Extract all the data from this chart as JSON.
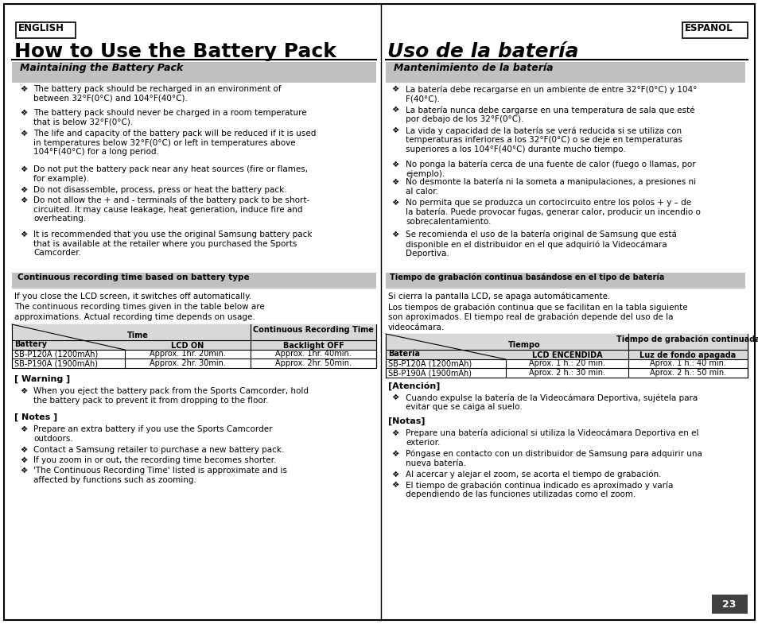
{
  "page_num": "23",
  "english_label": "ENGLISH",
  "espanol_label": "ESPAÑOL",
  "left_title": "How to Use the Battery Pack",
  "right_title": "Uso de la batería",
  "left_section": "Maintaining the Battery Pack",
  "right_section": "Mantenimiento de la batería",
  "left_subheader": "Continuous recording time based on battery type",
  "right_subheader": "Tiempo de grabación continua basándose en el tipo de batería",
  "left_sub_text1": "If you close the LCD screen, it switches off automatically.",
  "left_sub_text2": "The continuous recording times given in the table below are",
  "left_sub_text3": "approximations. Actual recording time depends on usage.",
  "right_sub_text1": "Si cierra la pantalla LCD, se apaga automáticamente.",
  "right_sub_text2": "Los tiempos de grabación continua que se facilitan en la tabla siguiente",
  "right_sub_text3": "son aproximados. El tiempo real de grabación depende del uso de la",
  "right_sub_text4": "videocámara.",
  "left_warning_header": "[ Warning ]",
  "left_warning_bullet": "When you eject the battery pack from the Sports Camcorder, hold\nthe battery pack to prevent it from dropping to the floor.",
  "left_notes_header": "[ Notes ]",
  "right_atention_header": "[Atención]",
  "right_atention_bullet": "Cuando expulse la batería de la Videocámara Deportiva, sujétela para\nevitar que se caiga al suelo.",
  "right_notas_header": "[Notas]"
}
